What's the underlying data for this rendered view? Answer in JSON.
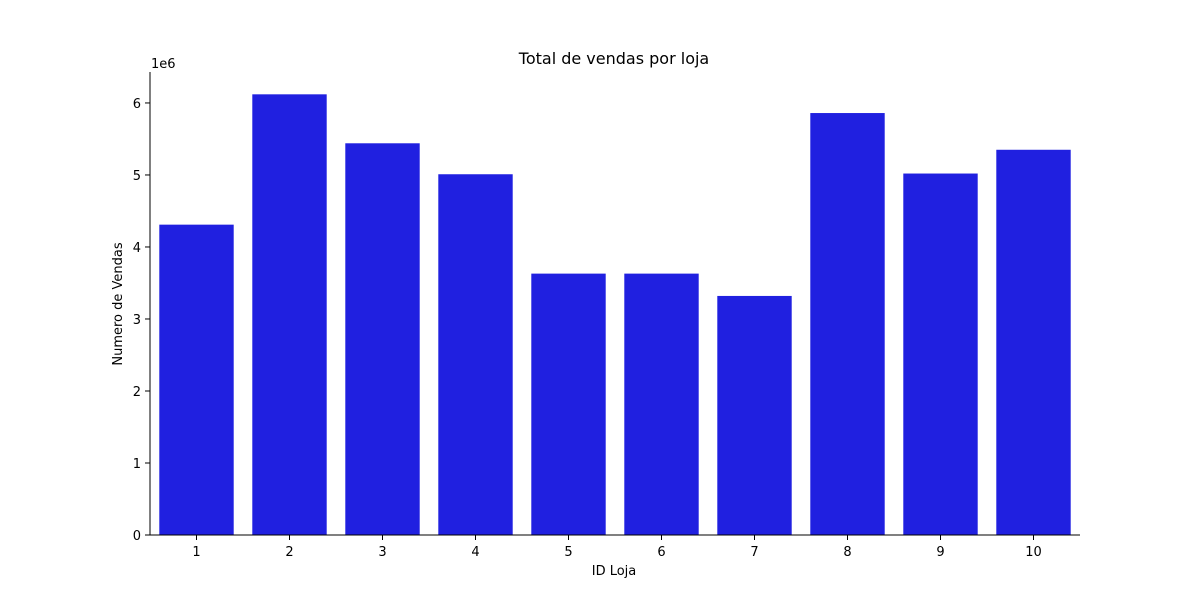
{
  "chart_data": {
    "type": "bar",
    "title": "Total de vendas por loja",
    "xlabel": "ID Loja",
    "ylabel": "Numero de Vendas",
    "offset_label": "1e6",
    "categories": [
      "1",
      "2",
      "3",
      "4",
      "5",
      "6",
      "7",
      "8",
      "9",
      "10"
    ],
    "values": [
      4310000,
      6120000,
      5440000,
      5010000,
      3630000,
      3630000,
      3320000,
      5860000,
      5020000,
      5350000
    ],
    "ylim": [
      0,
      6430000
    ],
    "yticks": [
      0,
      1000000,
      2000000,
      3000000,
      4000000,
      5000000,
      6000000
    ],
    "ytick_labels": [
      "0",
      "1",
      "2",
      "3",
      "4",
      "5",
      "6"
    ],
    "bar_color": "#2020e0",
    "grid": false,
    "legend": "none"
  }
}
